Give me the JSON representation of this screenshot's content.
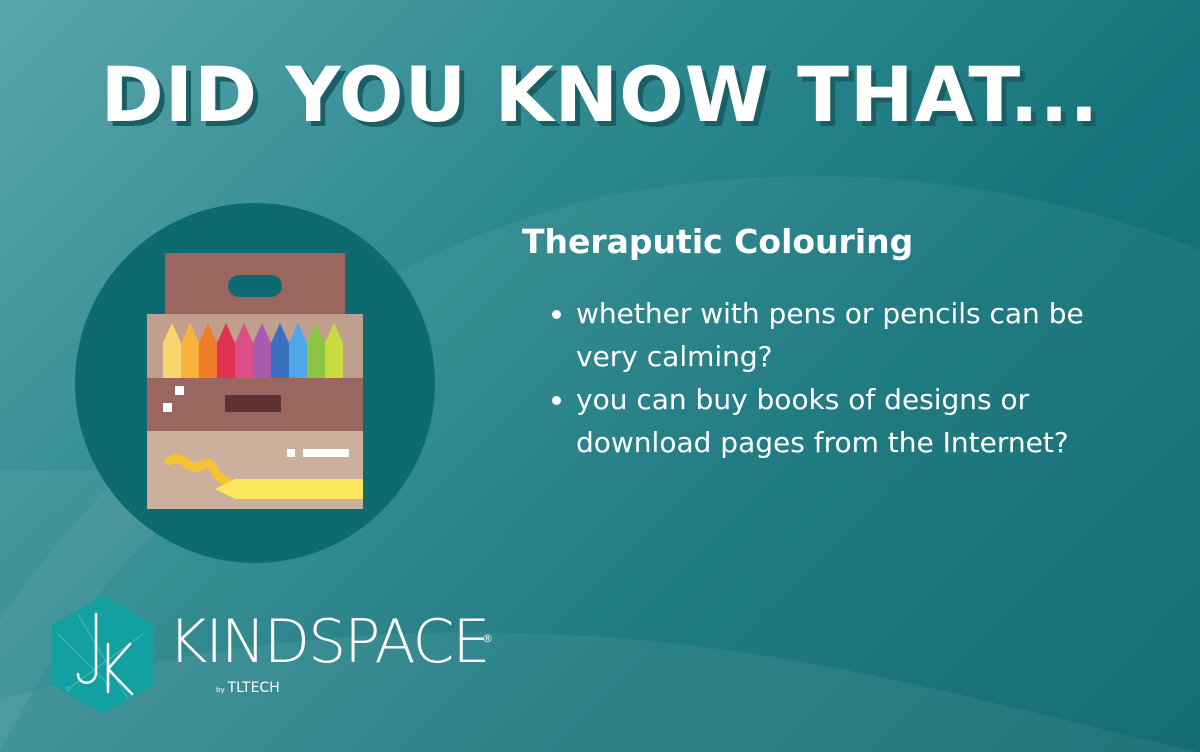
{
  "headline": "DID YOU KNOW THAT...",
  "subtitle": "Theraputic Colouring",
  "bullets": [
    "whether with pens or pencils can be very calming?",
    "you can buy books of designs or download pages from the Internet?"
  ],
  "logo": {
    "wordmark": "KINDSPACE",
    "registered": "®",
    "by_prefix": "by",
    "by_brand": "TLTECH",
    "monogram": "JK"
  },
  "colors": {
    "background_dark": "#0a656c",
    "background_light": "#5aa6ab",
    "circle": "#0d6b70",
    "box_top": "#9b6560",
    "box_bottom": "#cdb09c",
    "text": "#ffffff",
    "logo_hex": "#12a0a0"
  },
  "illustration": {
    "icon": "crayon-box-icon",
    "crayon_colors": [
      "#f9d56e",
      "#f7b23b",
      "#f07c29",
      "#e0334f",
      "#dc4f86",
      "#a85bb0",
      "#3a6fc0",
      "#4fa6e6",
      "#8ac643",
      "#c7db3e"
    ]
  }
}
